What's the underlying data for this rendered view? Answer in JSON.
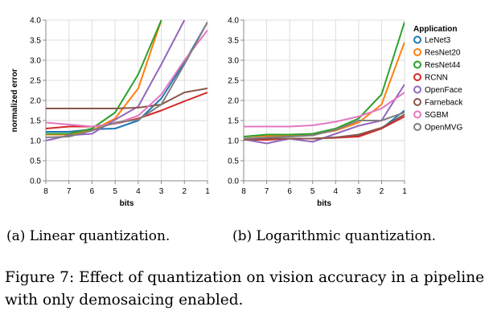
{
  "chart_data": [
    {
      "type": "line",
      "xlabel": "bits",
      "ylabel": "normalized error",
      "x": [
        8,
        7,
        6,
        5,
        4,
        3,
        2,
        1
      ],
      "x_ticks": [
        "8",
        "7",
        "6",
        "5",
        "4",
        "3",
        "2",
        "1"
      ],
      "x_reversed": true,
      "ylim": [
        0,
        4
      ],
      "y_ticks": [
        "0.0",
        "0.5",
        "1.0",
        "1.5",
        "2.0",
        "2.5",
        "3.0",
        "3.5",
        "4.0"
      ],
      "grid": true,
      "series": [
        {
          "name": "LeNet3",
          "values": [
            1.22,
            1.22,
            1.28,
            1.3,
            1.5,
            2.05,
            2.95,
            3.95
          ]
        },
        {
          "name": "ResNet20",
          "values": [
            1.15,
            1.15,
            1.25,
            1.55,
            2.3,
            4.0,
            null,
            null
          ]
        },
        {
          "name": "ResNet44",
          "values": [
            1.17,
            1.17,
            1.3,
            1.7,
            2.65,
            4.0,
            null,
            null
          ]
        },
        {
          "name": "RCNN",
          "values": [
            1.3,
            1.35,
            1.35,
            1.42,
            1.55,
            1.75,
            1.98,
            2.2
          ]
        },
        {
          "name": "OpenFace",
          "values": [
            1.0,
            1.13,
            1.17,
            1.52,
            1.85,
            2.9,
            4.0,
            null
          ]
        },
        {
          "name": "Farneback",
          "values": [
            1.8,
            1.8,
            1.8,
            1.8,
            1.82,
            1.9,
            2.2,
            2.3
          ]
        },
        {
          "name": "SGBM",
          "values": [
            1.45,
            1.4,
            1.35,
            1.42,
            1.62,
            2.15,
            3.0,
            3.75
          ]
        },
        {
          "name": "OpenMVG",
          "values": [
            1.08,
            1.1,
            1.25,
            1.45,
            1.52,
            1.9,
            2.9,
            3.95
          ]
        }
      ]
    },
    {
      "type": "line",
      "xlabel": "bits",
      "ylabel": "",
      "x": [
        8,
        7,
        6,
        5,
        4,
        3,
        2,
        1
      ],
      "x_ticks": [
        "8",
        "7",
        "6",
        "5",
        "4",
        "3",
        "2",
        "1"
      ],
      "x_reversed": true,
      "ylim": [
        0,
        4
      ],
      "y_ticks": [
        "0.0",
        "0.5",
        "1.0",
        "1.5",
        "2.0",
        "2.5",
        "3.0",
        "3.5",
        "4.0"
      ],
      "grid": true,
      "series": [
        {
          "name": "LeNet3",
          "values": [
            1.05,
            1.05,
            1.05,
            1.05,
            1.08,
            1.12,
            1.3,
            1.75
          ]
        },
        {
          "name": "ResNet20",
          "values": [
            1.1,
            1.12,
            1.12,
            1.15,
            1.25,
            1.45,
            1.9,
            3.45
          ]
        },
        {
          "name": "ResNet44",
          "values": [
            1.1,
            1.15,
            1.15,
            1.17,
            1.3,
            1.55,
            2.15,
            3.95
          ]
        },
        {
          "name": "RCNN",
          "values": [
            1.02,
            1.02,
            1.05,
            1.05,
            1.07,
            1.1,
            1.3,
            1.6
          ]
        },
        {
          "name": "OpenFace",
          "values": [
            1.03,
            0.93,
            1.05,
            0.97,
            1.17,
            1.37,
            1.5,
            2.4
          ]
        },
        {
          "name": "Farneback",
          "values": [
            1.02,
            1.05,
            1.05,
            1.05,
            1.08,
            1.15,
            1.32,
            1.65
          ]
        },
        {
          "name": "SGBM",
          "values": [
            1.35,
            1.35,
            1.35,
            1.38,
            1.47,
            1.6,
            1.8,
            2.2
          ]
        },
        {
          "name": "OpenMVG",
          "values": [
            1.05,
            1.08,
            1.1,
            1.13,
            1.27,
            1.5,
            1.5,
            1.7
          ]
        }
      ]
    }
  ],
  "legend": {
    "title": "Application",
    "placement": "right",
    "entries": [
      "LeNet3",
      "ResNet20",
      "ResNet44",
      "RCNN",
      "OpenFace",
      "Farneback",
      "SGBM",
      "OpenMVG"
    ]
  },
  "colors": {
    "LeNet3": "#1f77b4",
    "ResNet20": "#ff7f0e",
    "ResNet44": "#2ca02c",
    "RCNN": "#d62728",
    "OpenFace": "#9467bd",
    "Farneback": "#8c564b",
    "SGBM": "#e377c2",
    "OpenMVG": "#7f7f7f"
  },
  "subcaptions": [
    "(a) Linear quantization.",
    "(b) Logarithmic quantization."
  ],
  "caption": "Figure 7: Effect of quantization on vision accuracy in a pipeline with only demosaicing enabled."
}
